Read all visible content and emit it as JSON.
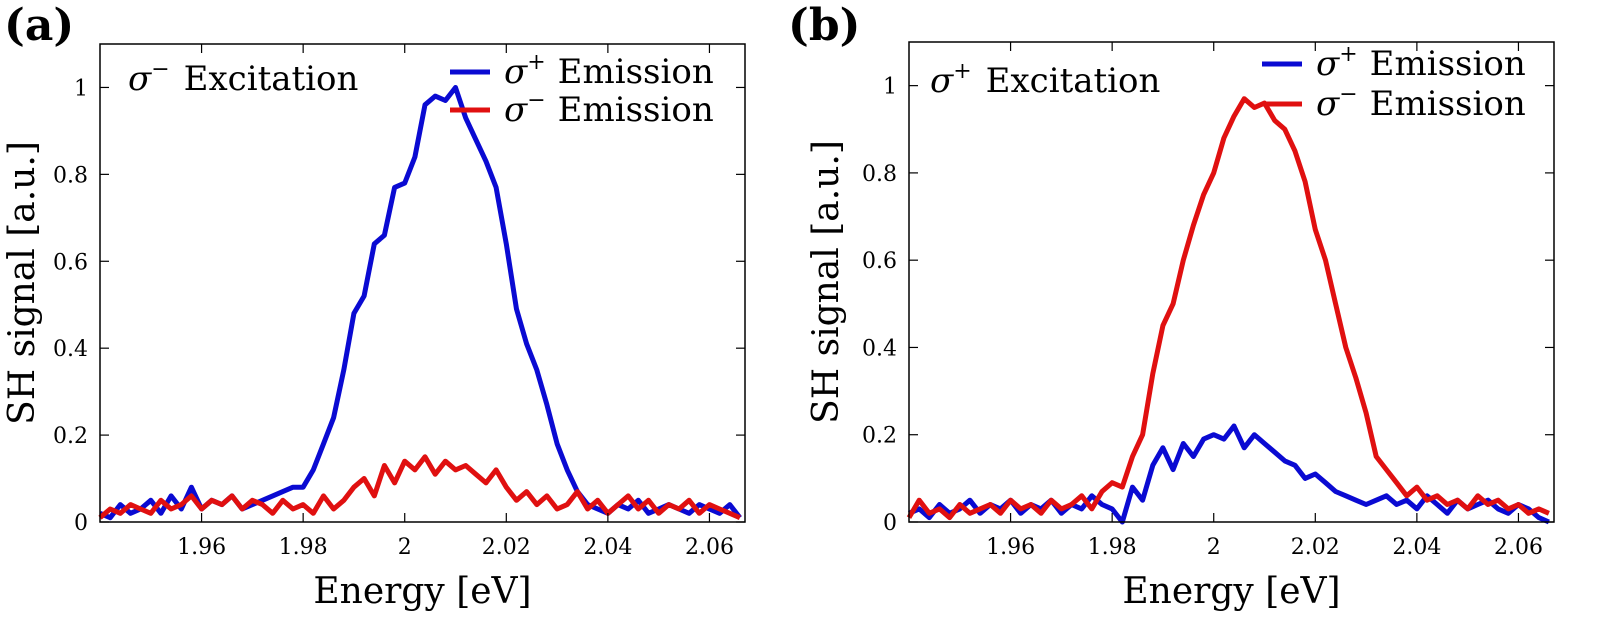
{
  "colors": {
    "blue": "#0a0ad2",
    "red": "#e01010",
    "axis": "#000000"
  },
  "chart_data": [
    {
      "type": "line",
      "panel_label": "(a)",
      "annotation": {
        "symbol": "σ",
        "sup": "−",
        "text": "Excitation"
      },
      "xlabel": "Energy [eV]",
      "ylabel": "SH signal [a.u.]",
      "xlim": [
        1.94,
        2.067
      ],
      "ylim": [
        0,
        1.1
      ],
      "xticks": [
        1.96,
        1.98,
        2,
        2.02,
        2.04,
        2.06
      ],
      "xtick_labels": [
        "1.96",
        "1.98",
        "2",
        "2.02",
        "2.04",
        "2.06"
      ],
      "yticks": [
        0,
        0.2,
        0.4,
        0.6,
        0.8,
        1
      ],
      "ytick_labels": [
        "0",
        "0.2",
        "0.4",
        "0.6",
        "0.8",
        "1"
      ],
      "legend_position": "top-right",
      "grid": false,
      "series": [
        {
          "name": "σ+ Emission",
          "symbol": "σ",
          "sup": "+",
          "label": "Emission",
          "color": "blue",
          "x": [
            1.94,
            1.942,
            1.944,
            1.946,
            1.948,
            1.95,
            1.952,
            1.954,
            1.956,
            1.958,
            1.96,
            1.962,
            1.964,
            1.966,
            1.968,
            1.97,
            1.972,
            1.974,
            1.976,
            1.978,
            1.98,
            1.982,
            1.984,
            1.986,
            1.988,
            1.99,
            1.992,
            1.994,
            1.996,
            1.998,
            2.0,
            2.002,
            2.004,
            2.006,
            2.008,
            2.01,
            2.012,
            2.014,
            2.016,
            2.018,
            2.02,
            2.022,
            2.024,
            2.026,
            2.028,
            2.03,
            2.032,
            2.034,
            2.036,
            2.038,
            2.04,
            2.042,
            2.044,
            2.046,
            2.048,
            2.05,
            2.052,
            2.054,
            2.056,
            2.058,
            2.06,
            2.062,
            2.064,
            2.066
          ],
          "y": [
            0.02,
            0.01,
            0.04,
            0.02,
            0.03,
            0.05,
            0.02,
            0.06,
            0.03,
            0.08,
            0.03,
            0.05,
            0.04,
            0.06,
            0.03,
            0.04,
            0.05,
            0.06,
            0.07,
            0.08,
            0.08,
            0.12,
            0.18,
            0.24,
            0.35,
            0.48,
            0.52,
            0.64,
            0.66,
            0.77,
            0.78,
            0.84,
            0.96,
            0.98,
            0.97,
            1.0,
            0.93,
            0.88,
            0.83,
            0.77,
            0.64,
            0.49,
            0.41,
            0.35,
            0.27,
            0.18,
            0.12,
            0.07,
            0.04,
            0.03,
            0.02,
            0.04,
            0.03,
            0.05,
            0.02,
            0.03,
            0.04,
            0.03,
            0.02,
            0.04,
            0.03,
            0.02,
            0.04,
            0.01
          ]
        },
        {
          "name": "σ− Emission",
          "symbol": "σ",
          "sup": "−",
          "label": "Emission",
          "color": "red",
          "x": [
            1.94,
            1.942,
            1.944,
            1.946,
            1.948,
            1.95,
            1.952,
            1.954,
            1.956,
            1.958,
            1.96,
            1.962,
            1.964,
            1.966,
            1.968,
            1.97,
            1.972,
            1.974,
            1.976,
            1.978,
            1.98,
            1.982,
            1.984,
            1.986,
            1.988,
            1.99,
            1.992,
            1.994,
            1.996,
            1.998,
            2.0,
            2.002,
            2.004,
            2.006,
            2.008,
            2.01,
            2.012,
            2.014,
            2.016,
            2.018,
            2.02,
            2.022,
            2.024,
            2.026,
            2.028,
            2.03,
            2.032,
            2.034,
            2.036,
            2.038,
            2.04,
            2.042,
            2.044,
            2.046,
            2.048,
            2.05,
            2.052,
            2.054,
            2.056,
            2.058,
            2.06,
            2.062,
            2.064,
            2.066
          ],
          "y": [
            0.01,
            0.03,
            0.02,
            0.04,
            0.03,
            0.02,
            0.05,
            0.03,
            0.04,
            0.06,
            0.03,
            0.05,
            0.04,
            0.06,
            0.03,
            0.05,
            0.04,
            0.02,
            0.05,
            0.03,
            0.04,
            0.02,
            0.06,
            0.03,
            0.05,
            0.08,
            0.1,
            0.06,
            0.13,
            0.09,
            0.14,
            0.12,
            0.15,
            0.11,
            0.14,
            0.12,
            0.13,
            0.11,
            0.09,
            0.12,
            0.08,
            0.05,
            0.07,
            0.04,
            0.06,
            0.03,
            0.04,
            0.07,
            0.03,
            0.05,
            0.02,
            0.04,
            0.06,
            0.03,
            0.05,
            0.02,
            0.04,
            0.03,
            0.05,
            0.02,
            0.04,
            0.03,
            0.02,
            0.01
          ]
        }
      ]
    },
    {
      "type": "line",
      "panel_label": "(b)",
      "annotation": {
        "symbol": "σ",
        "sup": "+",
        "text": "Excitation"
      },
      "xlabel": "Energy [eV]",
      "ylabel": "SH signal [a.u.]",
      "xlim": [
        1.94,
        2.067
      ],
      "ylim": [
        0,
        1.1
      ],
      "xticks": [
        1.96,
        1.98,
        2,
        2.02,
        2.04,
        2.06
      ],
      "xtick_labels": [
        "1.96",
        "1.98",
        "2",
        "2.02",
        "2.04",
        "2.06"
      ],
      "yticks": [
        0,
        0.2,
        0.4,
        0.6,
        0.8,
        1
      ],
      "ytick_labels": [
        "0",
        "0.2",
        "0.4",
        "0.6",
        "0.8",
        "1"
      ],
      "legend_position": "top-right",
      "grid": false,
      "series": [
        {
          "name": "σ+ Emission",
          "symbol": "σ",
          "sup": "+",
          "label": "Emission",
          "color": "blue",
          "x": [
            1.94,
            1.942,
            1.944,
            1.946,
            1.948,
            1.95,
            1.952,
            1.954,
            1.956,
            1.958,
            1.96,
            1.962,
            1.964,
            1.966,
            1.968,
            1.97,
            1.972,
            1.974,
            1.976,
            1.978,
            1.98,
            1.982,
            1.984,
            1.986,
            1.988,
            1.99,
            1.992,
            1.994,
            1.996,
            1.998,
            2.0,
            2.002,
            2.004,
            2.006,
            2.008,
            2.01,
            2.012,
            2.014,
            2.016,
            2.018,
            2.02,
            2.022,
            2.024,
            2.026,
            2.028,
            2.03,
            2.032,
            2.034,
            2.036,
            2.038,
            2.04,
            2.042,
            2.044,
            2.046,
            2.048,
            2.05,
            2.052,
            2.054,
            2.056,
            2.058,
            2.06,
            2.062,
            2.064,
            2.066
          ],
          "y": [
            0.02,
            0.03,
            0.01,
            0.04,
            0.02,
            0.03,
            0.05,
            0.02,
            0.04,
            0.03,
            0.05,
            0.02,
            0.04,
            0.03,
            0.05,
            0.02,
            0.04,
            0.03,
            0.06,
            0.04,
            0.03,
            0.0,
            0.08,
            0.05,
            0.13,
            0.17,
            0.12,
            0.18,
            0.15,
            0.19,
            0.2,
            0.19,
            0.22,
            0.17,
            0.2,
            0.18,
            0.16,
            0.14,
            0.13,
            0.1,
            0.11,
            0.09,
            0.07,
            0.06,
            0.05,
            0.04,
            0.05,
            0.06,
            0.04,
            0.05,
            0.03,
            0.06,
            0.04,
            0.02,
            0.05,
            0.03,
            0.04,
            0.05,
            0.03,
            0.02,
            0.04,
            0.03,
            0.01,
            0.0
          ]
        },
        {
          "name": "σ− Emission",
          "symbol": "σ",
          "sup": "−",
          "label": "Emission",
          "color": "red",
          "x": [
            1.94,
            1.942,
            1.944,
            1.946,
            1.948,
            1.95,
            1.952,
            1.954,
            1.956,
            1.958,
            1.96,
            1.962,
            1.964,
            1.966,
            1.968,
            1.97,
            1.972,
            1.974,
            1.976,
            1.978,
            1.98,
            1.982,
            1.984,
            1.986,
            1.988,
            1.99,
            1.992,
            1.994,
            1.996,
            1.998,
            2.0,
            2.002,
            2.004,
            2.006,
            2.008,
            2.01,
            2.012,
            2.014,
            2.016,
            2.018,
            2.02,
            2.022,
            2.024,
            2.026,
            2.028,
            2.03,
            2.032,
            2.034,
            2.036,
            2.038,
            2.04,
            2.042,
            2.044,
            2.046,
            2.048,
            2.05,
            2.052,
            2.054,
            2.056,
            2.058,
            2.06,
            2.062,
            2.064,
            2.066
          ],
          "y": [
            0.01,
            0.05,
            0.02,
            0.03,
            0.01,
            0.04,
            0.02,
            0.03,
            0.04,
            0.02,
            0.05,
            0.03,
            0.04,
            0.02,
            0.05,
            0.03,
            0.04,
            0.06,
            0.03,
            0.07,
            0.09,
            0.08,
            0.15,
            0.2,
            0.34,
            0.45,
            0.5,
            0.6,
            0.68,
            0.75,
            0.8,
            0.88,
            0.93,
            0.97,
            0.95,
            0.96,
            0.92,
            0.9,
            0.85,
            0.78,
            0.67,
            0.6,
            0.5,
            0.4,
            0.33,
            0.25,
            0.15,
            0.12,
            0.09,
            0.06,
            0.08,
            0.05,
            0.06,
            0.04,
            0.05,
            0.03,
            0.06,
            0.04,
            0.05,
            0.03,
            0.04,
            0.02,
            0.03,
            0.02
          ]
        }
      ]
    }
  ]
}
